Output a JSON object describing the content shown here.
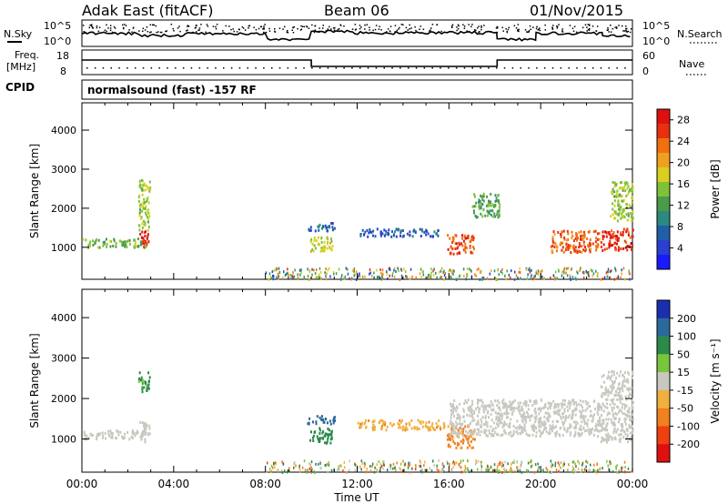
{
  "header": {
    "radar": "Adak East (fitACF)",
    "beam": "Beam 06",
    "date": "01/Nov/2015"
  },
  "params": {
    "nsky_label": "N.Sky",
    "nsearch_label": "N.Search",
    "freq_label_1": "Freq.",
    "freq_label_2": "[MHz]",
    "nave_label": "Nave",
    "cpid_label": "CPID",
    "cpid_text": "normalsound (fast) -157 RF",
    "noise_ticks_left": [
      "10^5",
      "10^0"
    ],
    "noise_ticks_right": [
      "10^5",
      "10^0"
    ],
    "freq_ticks": [
      "18",
      "8"
    ],
    "nave_ticks": [
      "60",
      "0"
    ]
  },
  "chart_data": [
    {
      "type": "heatmap",
      "title": "",
      "xlabel": "Time UT",
      "ylabel": "Slant Range [km]",
      "x_ticks": [
        "00:00",
        "04:00",
        "08:00",
        "12:00",
        "16:00",
        "20:00",
        "00:00"
      ],
      "xlim_hours": [
        0,
        24
      ],
      "y_ticks": [
        1000,
        2000,
        3000,
        4000
      ],
      "ylim": [
        180,
        4700
      ],
      "colorbar": {
        "label": "Power [dB]",
        "ticks": [
          4,
          8,
          12,
          16,
          20,
          24,
          28
        ],
        "range": [
          0,
          30
        ],
        "colors": [
          "#1a1aff",
          "#2b3fd0",
          "#1f5fa8",
          "#2a8a80",
          "#4a9a4a",
          "#7fc23a",
          "#d8d020",
          "#f0a020",
          "#f07010",
          "#e83010",
          "#e01010"
        ]
      },
      "echo_regions": [
        {
          "t0": 0.0,
          "t1": 2.8,
          "r0": 1020,
          "r1": 1250,
          "value": 14
        },
        {
          "t0": 2.5,
          "t1": 2.95,
          "r0": 1000,
          "r1": 1450,
          "value": 27
        },
        {
          "t0": 2.45,
          "t1": 2.95,
          "r0": 1450,
          "r1": 2750,
          "value": 16
        },
        {
          "t0": 9.9,
          "t1": 10.9,
          "r0": 920,
          "r1": 1320,
          "value": 17
        },
        {
          "t0": 9.8,
          "t1": 11.0,
          "r0": 1450,
          "r1": 1650,
          "value": 7
        },
        {
          "t0": 12.0,
          "t1": 15.5,
          "r0": 1300,
          "r1": 1500,
          "value": 6
        },
        {
          "t0": 15.9,
          "t1": 17.1,
          "r0": 850,
          "r1": 1350,
          "value": 25
        },
        {
          "t0": 17.0,
          "t1": 18.2,
          "r0": 1800,
          "r1": 2400,
          "value": 13
        },
        {
          "t0": 20.4,
          "t1": 22.6,
          "r0": 900,
          "r1": 1450,
          "value": 24
        },
        {
          "t0": 22.6,
          "t1": 24.0,
          "r0": 950,
          "r1": 1500,
          "value": 27
        },
        {
          "t0": 23.0,
          "t1": 24.0,
          "r0": 1700,
          "r1": 2700,
          "value": 16
        }
      ]
    },
    {
      "type": "heatmap",
      "title": "",
      "xlabel": "Time UT",
      "ylabel": "Slant Range [km]",
      "x_ticks": [
        "00:00",
        "04:00",
        "08:00",
        "12:00",
        "16:00",
        "20:00",
        "00:00"
      ],
      "xlim_hours": [
        0,
        24
      ],
      "y_ticks": [
        1000,
        2000,
        3000,
        4000
      ],
      "ylim": [
        180,
        4700
      ],
      "colorbar": {
        "label": "Velocity [m s⁻¹]",
        "ticks": [
          "200",
          "100",
          "50",
          "15",
          "-15",
          "-50",
          "-100",
          "-200"
        ],
        "colors": [
          "#1a2fb0",
          "#2a6a9a",
          "#2a8a4a",
          "#7ac63a",
          "#c8c8c0",
          "#f0b040",
          "#f08020",
          "#f04010",
          "#e01010"
        ]
      },
      "echo_regions": [
        {
          "t0": 0.0,
          "t1": 2.8,
          "r0": 1020,
          "r1": 1250,
          "value": 0
        },
        {
          "t0": 2.5,
          "t1": 2.95,
          "r0": 950,
          "r1": 1450,
          "value": 0
        },
        {
          "t0": 2.45,
          "t1": 2.95,
          "r0": 2200,
          "r1": 2700,
          "value": 60
        },
        {
          "t0": 9.9,
          "t1": 10.9,
          "r0": 900,
          "r1": 1300,
          "value": 70
        },
        {
          "t0": 9.8,
          "t1": 11.0,
          "r0": 1400,
          "r1": 1600,
          "value": 180
        },
        {
          "t0": 12.0,
          "t1": 15.8,
          "r0": 1250,
          "r1": 1500,
          "value": -40
        },
        {
          "t0": 15.9,
          "t1": 17.1,
          "r0": 800,
          "r1": 1350,
          "value": -60
        },
        {
          "t0": 16.0,
          "t1": 22.6,
          "r0": 1100,
          "r1": 2000,
          "value": 0
        },
        {
          "t0": 22.6,
          "t1": 24.0,
          "r0": 950,
          "r1": 2700,
          "value": 0
        }
      ]
    }
  ]
}
